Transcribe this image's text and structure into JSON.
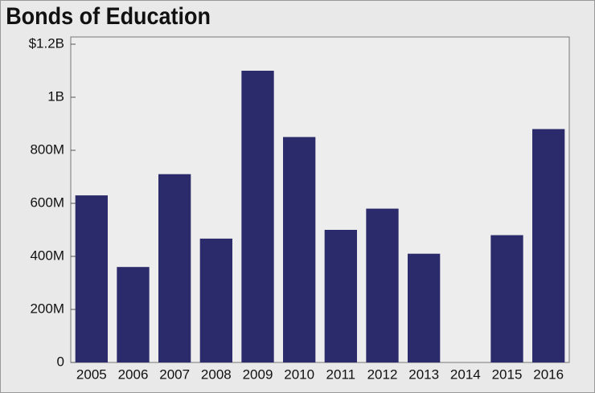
{
  "chart_data": {
    "type": "bar",
    "title": "Bonds of Education",
    "categories": [
      "2005",
      "2006",
      "2007",
      "2008",
      "2009",
      "2010",
      "2011",
      "2012",
      "2013",
      "2014",
      "2015",
      "2016"
    ],
    "values": [
      630000000,
      360000000,
      710000000,
      467000000,
      1100000000,
      850000000,
      500000000,
      580000000,
      410000000,
      0,
      480000000,
      880000000
    ],
    "color": "#2b2a6a",
    "ylim": [
      0,
      1200000000
    ],
    "yticks": [
      0,
      {
        "value": 200000000,
        "label": "200M"
      },
      {
        "value": 400000000,
        "label": "400M"
      },
      {
        "value": 600000000,
        "label": "600M"
      },
      {
        "value": 800000000,
        "label": "800M"
      },
      {
        "value": 1000000000,
        "label": "1B"
      },
      {
        "value": 1200000000,
        "label": "$1.2B"
      }
    ],
    "grid": false
  }
}
